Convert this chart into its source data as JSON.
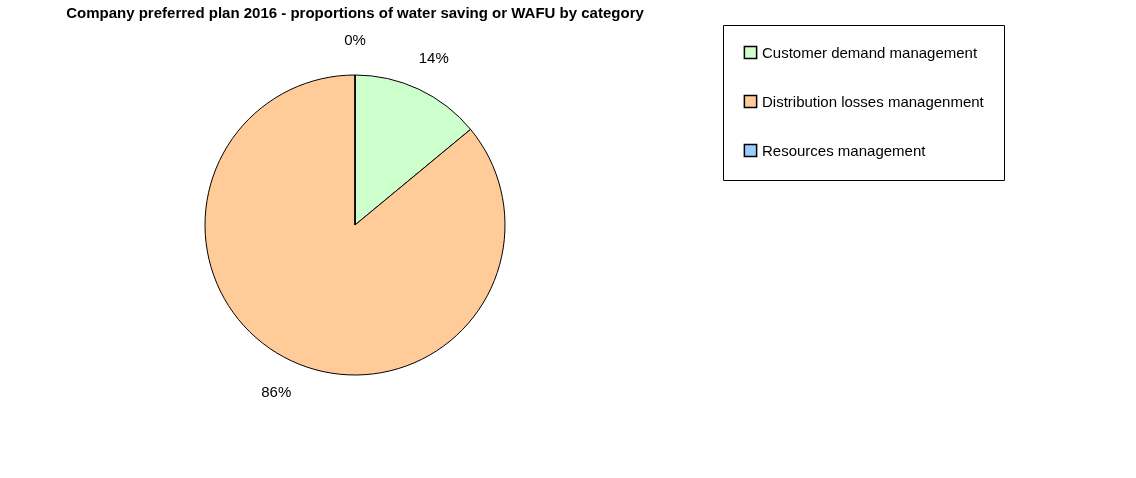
{
  "chart_data": {
    "type": "pie",
    "title": "Company preferred plan 2016 - proportions of water saving or WAFU by category",
    "categories": [
      "Customer demand management",
      "Distribution losses managenment",
      "Resources management"
    ],
    "values": [
      14,
      86,
      0
    ],
    "colors": [
      "#ccffcc",
      "#ffcc99",
      "#99ccff"
    ],
    "value_labels": [
      "14%",
      "86%",
      "0%"
    ],
    "legend": "right"
  }
}
